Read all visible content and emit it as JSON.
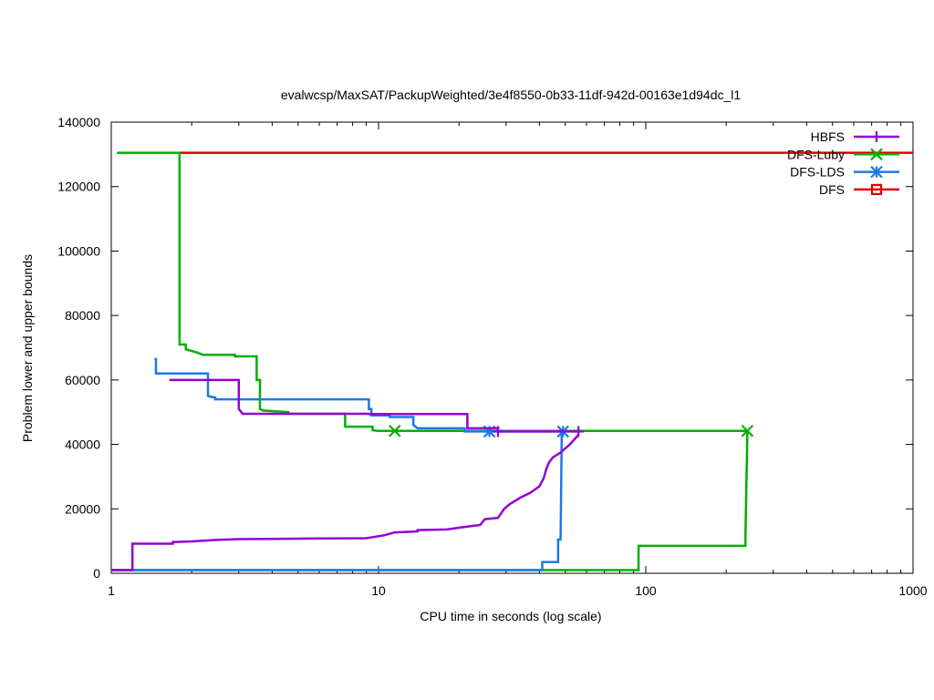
{
  "chart_data": {
    "type": "line",
    "title": "evalwcsp/MaxSAT/PackupWeighted/3e4f8550-0b33-11df-942d-00163e1d94dc_l1",
    "xlabel": "CPU time in seconds (log scale)",
    "ylabel": "Problem lower and upper bounds",
    "xscale": "log",
    "xlim": [
      1,
      1000
    ],
    "ylim": [
      0,
      140000
    ],
    "xticks": [
      1,
      10,
      100,
      1000
    ],
    "xtick_labels": [
      "1",
      "10",
      "100",
      "1000"
    ],
    "yticks": [
      0,
      20000,
      40000,
      60000,
      80000,
      100000,
      120000,
      140000
    ],
    "ytick_labels": [
      "0",
      "20000",
      "40000",
      "60000",
      "80000",
      "100000",
      "120000",
      "140000"
    ],
    "grid": false,
    "legend_position": "top-right",
    "series": [
      {
        "name": "HBFS",
        "color": "#9400d3",
        "marker": "plus",
        "upper": [
          [
            1.65,
            60000
          ],
          [
            3.0,
            60000
          ],
          [
            3.0,
            51000
          ],
          [
            3.1,
            49500
          ],
          [
            9.2,
            49500
          ],
          [
            9.2,
            49400
          ],
          [
            21.5,
            49400
          ],
          [
            21.5,
            45000
          ],
          [
            28,
            45000
          ],
          [
            28,
            44000
          ],
          [
            56,
            44000
          ]
        ],
        "lower": [
          [
            1.0,
            1000
          ],
          [
            1.2,
            1000
          ],
          [
            1.2,
            9200
          ],
          [
            1.7,
            9200
          ],
          [
            1.7,
            9700
          ],
          [
            2.0,
            9900
          ],
          [
            2.5,
            10400
          ],
          [
            3.0,
            10600
          ],
          [
            4.0,
            10700
          ],
          [
            6.0,
            10800
          ],
          [
            9.0,
            10900
          ],
          [
            10.5,
            11800
          ],
          [
            11.5,
            12700
          ],
          [
            14,
            13000
          ],
          [
            14,
            13400
          ],
          [
            18,
            13600
          ],
          [
            21.5,
            14500
          ],
          [
            24,
            15000
          ],
          [
            25,
            16800
          ],
          [
            28,
            17200
          ],
          [
            29.5,
            20000
          ],
          [
            31,
            21500
          ],
          [
            34,
            23500
          ],
          [
            37,
            25000
          ],
          [
            40,
            27000
          ],
          [
            41.5,
            29500
          ],
          [
            42.5,
            32500
          ],
          [
            43.5,
            34500
          ],
          [
            45,
            36000
          ],
          [
            48,
            37500
          ],
          [
            52,
            40000
          ],
          [
            56,
            43000
          ]
        ],
        "markers": [
          [
            28,
            44000
          ],
          [
            56,
            44000
          ]
        ]
      },
      {
        "name": "DFS-Luby",
        "color": "#00b000",
        "marker": "x",
        "upper": [
          [
            1.05,
            130500
          ],
          [
            1.8,
            130500
          ],
          [
            1.8,
            71000
          ],
          [
            1.9,
            71000
          ],
          [
            1.9,
            69500
          ],
          [
            2.1,
            68500
          ],
          [
            2.2,
            67800
          ],
          [
            2.9,
            67800
          ],
          [
            2.9,
            67300
          ],
          [
            3.5,
            67300
          ],
          [
            3.5,
            60000
          ],
          [
            3.6,
            60000
          ],
          [
            3.6,
            51000
          ],
          [
            3.7,
            50500
          ],
          [
            4.6,
            50000
          ],
          [
            4.6,
            49500
          ],
          [
            7.5,
            49500
          ],
          [
            7.5,
            45500
          ],
          [
            9.5,
            45500
          ],
          [
            9.5,
            44400
          ],
          [
            10.0,
            44200
          ],
          [
            240,
            44200
          ]
        ],
        "lower": [
          [
            1.0,
            1000
          ],
          [
            94,
            1000
          ],
          [
            94,
            8500
          ],
          [
            236,
            8500
          ],
          [
            236,
            12000
          ],
          [
            240,
            44000
          ]
        ],
        "markers": [
          [
            11.5,
            44200
          ],
          [
            240,
            44200
          ]
        ]
      },
      {
        "name": "DFS-LDS",
        "color": "#1e78e6",
        "marker": "star",
        "upper": [
          [
            1.45,
            66500
          ],
          [
            1.47,
            66500
          ],
          [
            1.47,
            62000
          ],
          [
            2.3,
            62000
          ],
          [
            2.3,
            55000
          ],
          [
            2.45,
            54500
          ],
          [
            2.45,
            54000
          ],
          [
            9.2,
            54000
          ],
          [
            9.2,
            51000
          ],
          [
            9.4,
            51000
          ],
          [
            9.4,
            49000
          ],
          [
            11,
            49000
          ],
          [
            11,
            48500
          ],
          [
            13.5,
            48500
          ],
          [
            13.5,
            46000
          ],
          [
            14,
            45000
          ],
          [
            21,
            45000
          ],
          [
            21,
            44000
          ],
          [
            49,
            44000
          ]
        ],
        "lower": [
          [
            1.0,
            1000
          ],
          [
            41,
            1000
          ],
          [
            41,
            3500
          ],
          [
            47,
            3500
          ],
          [
            47,
            10500
          ],
          [
            48,
            10500
          ],
          [
            48.5,
            44000
          ]
        ],
        "markers": [
          [
            26,
            44000
          ],
          [
            49,
            44000
          ]
        ]
      },
      {
        "name": "DFS",
        "color": "#e00000",
        "marker": "square",
        "upper": [
          [
            1.8,
            130500
          ],
          [
            1000,
            130500
          ]
        ],
        "lower": [],
        "markers": []
      }
    ]
  }
}
